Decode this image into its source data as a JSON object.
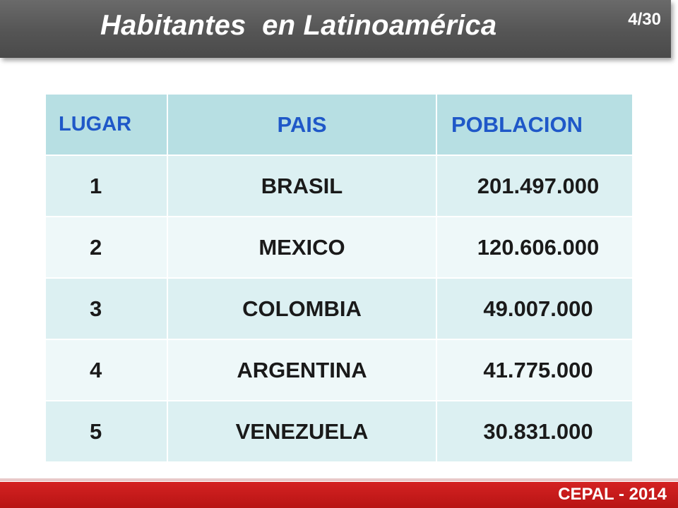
{
  "header": {
    "title": "Habitantes  en Latinoamérica",
    "page_number": "4/30"
  },
  "table": {
    "columns": [
      "LUGAR",
      "PAIS",
      "POBLACION"
    ],
    "rows": [
      {
        "lugar": "1",
        "pais": "BRASIL",
        "poblacion": "201.497.000"
      },
      {
        "lugar": "2",
        "pais": "MEXICO",
        "poblacion": "120.606.000"
      },
      {
        "lugar": "3",
        "pais": "COLOMBIA",
        "poblacion": "49.007.000"
      },
      {
        "lugar": "4",
        "pais": "ARGENTINA",
        "poblacion": "41.775.000"
      },
      {
        "lugar": "5",
        "pais": "VENEZUELA",
        "poblacion": "30.831.000"
      }
    ]
  },
  "footer": {
    "text": "CEPAL - 2014"
  },
  "colors": {
    "title_bar": "#555555",
    "header_row": "#b7dfe3",
    "header_text": "#1f58c8",
    "footer": "#c41a1a"
  }
}
